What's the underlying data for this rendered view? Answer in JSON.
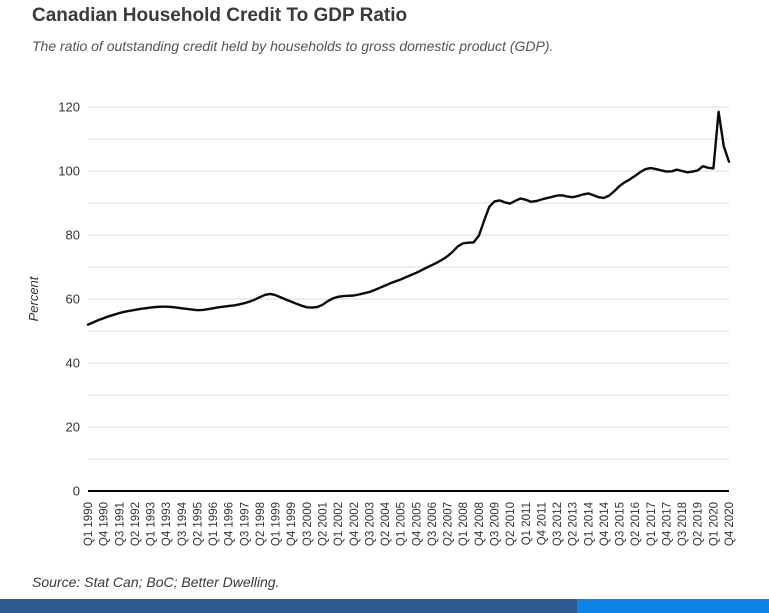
{
  "page": {
    "title": "Canadian Household Credit To GDP Ratio",
    "subtitle": "The ratio of outstanding credit held by households to gross domestic product (GDP).",
    "source": "Source: Stat Can; BoC; Better Dwelling."
  },
  "colors": {
    "line": "#0b0b0b",
    "grid": "#d9d9d9",
    "axis": "#000000",
    "title_text": "#3b3b3b",
    "subtitle_text": "#4d555e",
    "tick_text": "#333333",
    "source_text": "#3a3a3a",
    "footer_bar_left": "#2e5a94",
    "footer_bar_right": "#0c82e4"
  },
  "chart_data": {
    "type": "line",
    "title": "Canadian Household Credit To GDP Ratio",
    "xlabel": "",
    "ylabel": "Percent",
    "ylim": [
      0,
      120
    ],
    "y_tick_step": 20,
    "grid_step": 10,
    "grid": "horizontal-only",
    "legend": "none",
    "x_label_step": 3,
    "x": [
      "Q1 1990",
      "Q2 1990",
      "Q3 1990",
      "Q4 1990",
      "Q1 1991",
      "Q2 1991",
      "Q3 1991",
      "Q4 1991",
      "Q1 1992",
      "Q2 1992",
      "Q3 1992",
      "Q4 1992",
      "Q1 1993",
      "Q2 1993",
      "Q3 1993",
      "Q4 1993",
      "Q1 1994",
      "Q2 1994",
      "Q3 1994",
      "Q4 1994",
      "Q1 1995",
      "Q2 1995",
      "Q3 1995",
      "Q4 1995",
      "Q1 1996",
      "Q2 1996",
      "Q3 1996",
      "Q4 1996",
      "Q1 1997",
      "Q2 1997",
      "Q3 1997",
      "Q4 1997",
      "Q1 1998",
      "Q2 1998",
      "Q3 1998",
      "Q4 1998",
      "Q1 1999",
      "Q2 1999",
      "Q3 1999",
      "Q4 1999",
      "Q1 2000",
      "Q2 2000",
      "Q3 2000",
      "Q4 2000",
      "Q1 2001",
      "Q2 2001",
      "Q3 2001",
      "Q4 2001",
      "Q1 2002",
      "Q2 2002",
      "Q3 2002",
      "Q4 2002",
      "Q1 2003",
      "Q2 2003",
      "Q3 2003",
      "Q4 2003",
      "Q1 2004",
      "Q2 2004",
      "Q3 2004",
      "Q4 2004",
      "Q1 2005",
      "Q2 2005",
      "Q3 2005",
      "Q4 2005",
      "Q1 2006",
      "Q2 2006",
      "Q3 2006",
      "Q4 2006",
      "Q1 2007",
      "Q2 2007",
      "Q3 2007",
      "Q4 2007",
      "Q1 2008",
      "Q2 2008",
      "Q3 2008",
      "Q4 2008",
      "Q1 2009",
      "Q2 2009",
      "Q3 2009",
      "Q4 2009",
      "Q1 2010",
      "Q2 2010",
      "Q3 2010",
      "Q4 2010",
      "Q1 2011",
      "Q2 2011",
      "Q3 2011",
      "Q4 2011",
      "Q1 2012",
      "Q2 2012",
      "Q3 2012",
      "Q4 2012",
      "Q1 2013",
      "Q2 2013",
      "Q3 2013",
      "Q4 2013",
      "Q1 2014",
      "Q2 2014",
      "Q3 2014",
      "Q4 2014",
      "Q1 2015",
      "Q2 2015",
      "Q3 2015",
      "Q4 2015",
      "Q1 2016",
      "Q2 2016",
      "Q3 2016",
      "Q4 2016",
      "Q1 2017",
      "Q2 2017",
      "Q3 2017",
      "Q4 2017",
      "Q1 2018",
      "Q2 2018",
      "Q3 2018",
      "Q4 2018",
      "Q1 2019",
      "Q2 2019",
      "Q3 2019",
      "Q4 2019",
      "Q1 2020",
      "Q2 2020",
      "Q3 2020",
      "Q4 2020"
    ],
    "values": [
      52.0,
      52.7,
      53.4,
      54.0,
      54.6,
      55.1,
      55.6,
      56.0,
      56.3,
      56.6,
      56.9,
      57.1,
      57.3,
      57.5,
      57.6,
      57.6,
      57.5,
      57.3,
      57.1,
      56.9,
      56.7,
      56.5,
      56.6,
      56.8,
      57.1,
      57.4,
      57.6,
      57.8,
      58.0,
      58.3,
      58.7,
      59.2,
      59.8,
      60.6,
      61.3,
      61.6,
      61.2,
      60.5,
      59.8,
      59.2,
      58.5,
      57.9,
      57.4,
      57.3,
      57.5,
      58.2,
      59.3,
      60.2,
      60.7,
      60.9,
      61.0,
      61.1,
      61.4,
      61.8,
      62.2,
      62.8,
      63.5,
      64.2,
      64.9,
      65.5,
      66.1,
      66.8,
      67.5,
      68.2,
      69.0,
      69.8,
      70.6,
      71.4,
      72.3,
      73.4,
      74.8,
      76.5,
      77.4,
      77.6,
      77.7,
      79.8,
      84.5,
      88.8,
      90.5,
      90.8,
      90.2,
      89.8,
      90.7,
      91.4,
      91.0,
      90.4,
      90.6,
      91.1,
      91.5,
      91.9,
      92.3,
      92.4,
      92.0,
      91.8,
      92.2,
      92.7,
      93.0,
      92.4,
      91.8,
      91.6,
      92.3,
      93.7,
      95.3,
      96.5,
      97.4,
      98.5,
      99.7,
      100.6,
      100.9,
      100.6,
      100.2,
      99.8,
      99.9,
      100.4,
      100.0,
      99.6,
      99.8,
      100.2,
      101.5,
      101.0,
      100.8,
      118.5,
      107.7,
      102.9
    ]
  }
}
